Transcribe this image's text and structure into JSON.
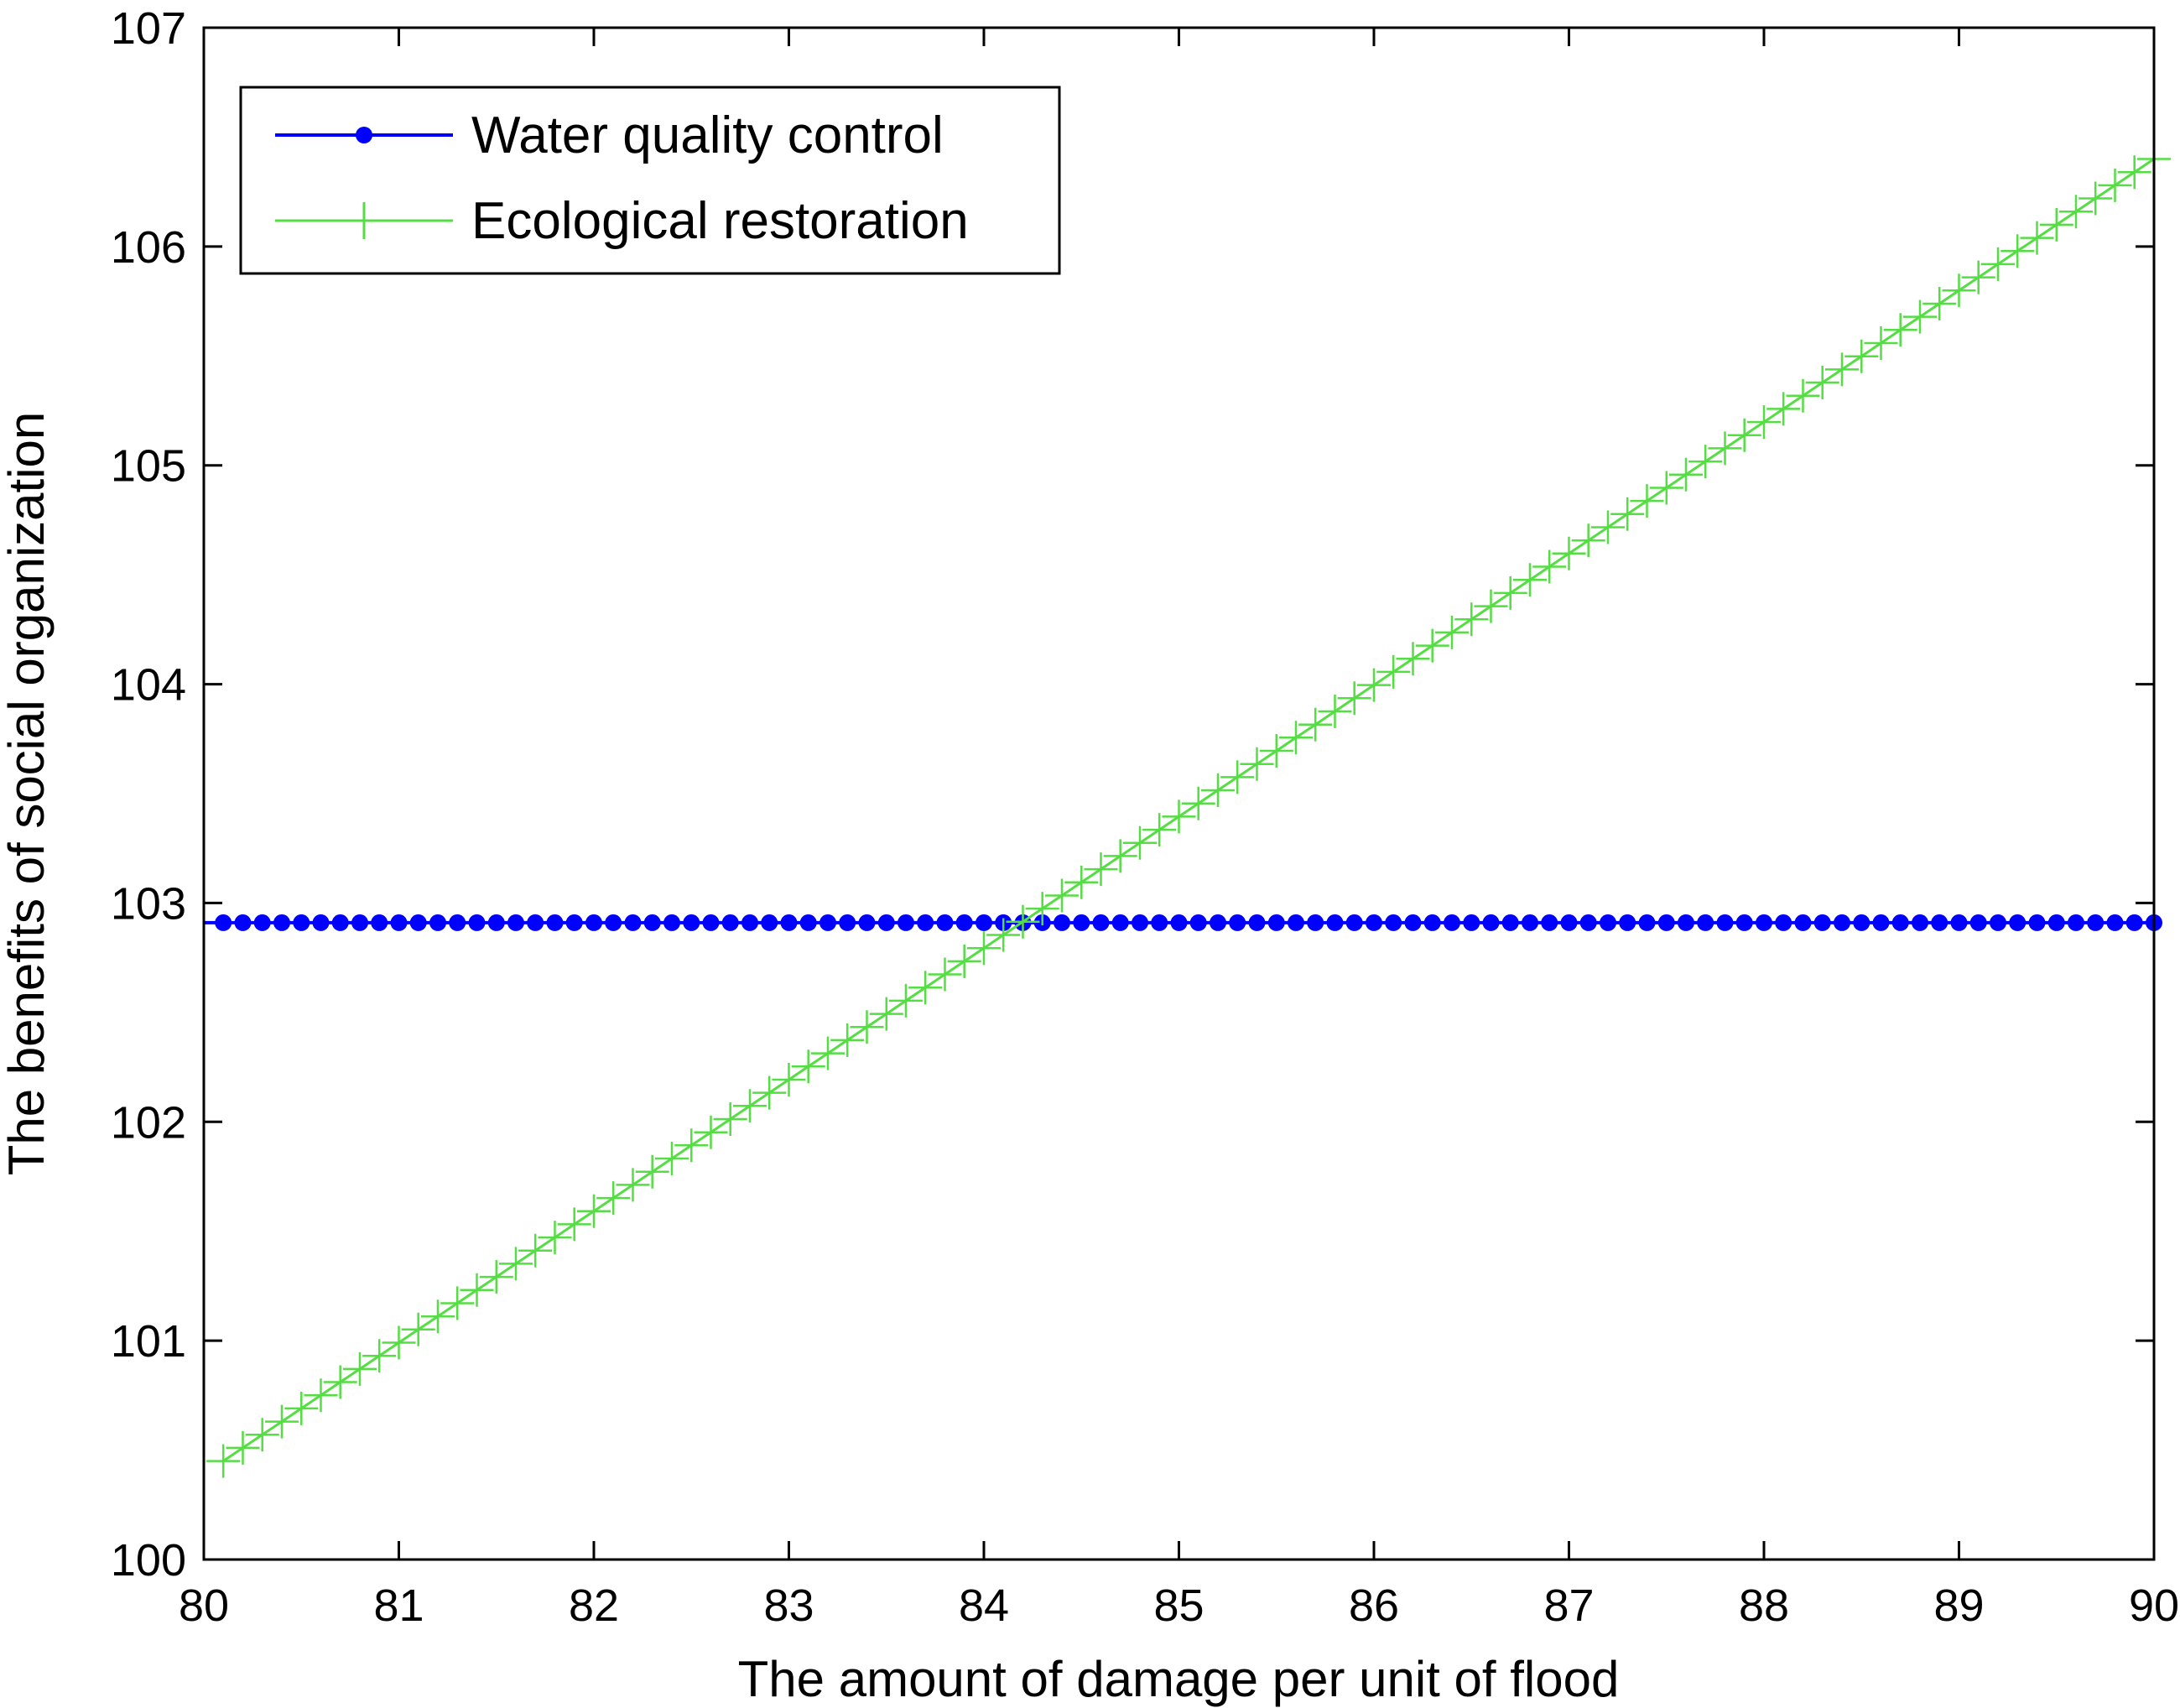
{
  "chart_data": {
    "type": "line",
    "title": "",
    "xlabel": "The amount of damage per unit of flood",
    "ylabel": "The benefits of social organization",
    "xlim": [
      80,
      90
    ],
    "ylim": [
      100,
      107
    ],
    "xticks": [
      80,
      81,
      82,
      83,
      84,
      85,
      86,
      87,
      88,
      89,
      90
    ],
    "yticks": [
      100,
      101,
      102,
      103,
      104,
      105,
      106,
      107
    ],
    "grid": false,
    "legend_position": "top-left",
    "x_range": [
      80.1,
      90
    ],
    "x_step": 0.1,
    "series": [
      {
        "name": "Water quality control",
        "color": "#0000ff",
        "marker": "circle",
        "values_formula": "constant",
        "y_start": 102.91,
        "y_end": 102.91
      },
      {
        "name": "Ecological restoration",
        "color": "#55dd44",
        "marker": "plus",
        "values_formula": "linear",
        "y_start": 100.45,
        "y_end": 106.4
      }
    ]
  }
}
